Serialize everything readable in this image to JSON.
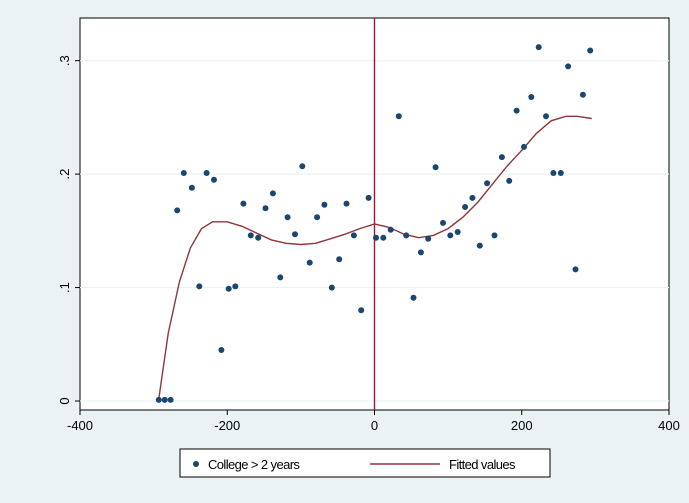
{
  "chart_data": {
    "type": "scatter",
    "title": "",
    "xlabel": "",
    "ylabel": "",
    "xlim": [
      -400,
      400
    ],
    "ylim": [
      0,
      0.32
    ],
    "x_ticks": [
      {
        "value": -400,
        "label": "-400"
      },
      {
        "value": -200,
        "label": "-200"
      },
      {
        "value": 0,
        "label": "0"
      },
      {
        "value": 200,
        "label": "200"
      },
      {
        "value": 400,
        "label": "400"
      }
    ],
    "y_ticks": [
      {
        "value": 0,
        "label": "0"
      },
      {
        "value": 0.1,
        "label": ".1"
      },
      {
        "value": 0.2,
        "label": ".2"
      },
      {
        "value": 0.3,
        "label": ".3"
      }
    ],
    "grid": "horizontal",
    "cutoff_line_x": 0,
    "legend_position": "bottom",
    "series": [
      {
        "name": "College > 2 years",
        "kind": "scatter",
        "color": "#1a476f",
        "points": [
          [
            -293,
            0.001
          ],
          [
            -285,
            0.001
          ],
          [
            -277,
            0.001
          ],
          [
            -268,
            0.168
          ],
          [
            -259,
            0.201
          ],
          [
            -248,
            0.188
          ],
          [
            -238,
            0.101
          ],
          [
            -228,
            0.201
          ],
          [
            -218,
            0.195
          ],
          [
            -208,
            0.045
          ],
          [
            -198,
            0.099
          ],
          [
            -189,
            0.101
          ],
          [
            -178,
            0.174
          ],
          [
            -168,
            0.146
          ],
          [
            -158,
            0.144
          ],
          [
            -148,
            0.17
          ],
          [
            -138,
            0.183
          ],
          [
            -128,
            0.109
          ],
          [
            -118,
            0.162
          ],
          [
            -108,
            0.147
          ],
          [
            -98,
            0.207
          ],
          [
            -88,
            0.122
          ],
          [
            -78,
            0.162
          ],
          [
            -68,
            0.173
          ],
          [
            -58,
            0.1
          ],
          [
            -48,
            0.125
          ],
          [
            -38,
            0.174
          ],
          [
            -28,
            0.146
          ],
          [
            -18,
            0.08
          ],
          [
            -8,
            0.179
          ],
          [
            2,
            0.144
          ],
          [
            12,
            0.144
          ],
          [
            22,
            0.151
          ],
          [
            33,
            0.251
          ],
          [
            43,
            0.146
          ],
          [
            53,
            0.091
          ],
          [
            63,
            0.131
          ],
          [
            73,
            0.143
          ],
          [
            83,
            0.206
          ],
          [
            93,
            0.157
          ],
          [
            103,
            0.146
          ],
          [
            113,
            0.149
          ],
          [
            123,
            0.171
          ],
          [
            133,
            0.179
          ],
          [
            143,
            0.137
          ],
          [
            153,
            0.192
          ],
          [
            163,
            0.146
          ],
          [
            173,
            0.215
          ],
          [
            183,
            0.194
          ],
          [
            193,
            0.256
          ],
          [
            203,
            0.224
          ],
          [
            213,
            0.268
          ],
          [
            223,
            0.312
          ],
          [
            233,
            0.251
          ],
          [
            243,
            0.201
          ],
          [
            253,
            0.201
          ],
          [
            263,
            0.295
          ],
          [
            273,
            0.116
          ],
          [
            283,
            0.27
          ],
          [
            293,
            0.309
          ]
        ]
      },
      {
        "name": "Fitted values",
        "kind": "line",
        "color": "#90353b",
        "points": [
          [
            -293,
            0.002
          ],
          [
            -280,
            0.06
          ],
          [
            -265,
            0.105
          ],
          [
            -250,
            0.135
          ],
          [
            -235,
            0.152
          ],
          [
            -220,
            0.158
          ],
          [
            -200,
            0.158
          ],
          [
            -180,
            0.154
          ],
          [
            -160,
            0.148
          ],
          [
            -140,
            0.142
          ],
          [
            -120,
            0.139
          ],
          [
            -100,
            0.138
          ],
          [
            -80,
            0.139
          ],
          [
            -60,
            0.143
          ],
          [
            -40,
            0.147
          ],
          [
            -20,
            0.152
          ],
          [
            0,
            0.156
          ],
          [
            20,
            0.153
          ],
          [
            40,
            0.147
          ],
          [
            60,
            0.144
          ],
          [
            80,
            0.146
          ],
          [
            100,
            0.152
          ],
          [
            120,
            0.162
          ],
          [
            140,
            0.175
          ],
          [
            160,
            0.191
          ],
          [
            180,
            0.207
          ],
          [
            200,
            0.221
          ],
          [
            220,
            0.236
          ],
          [
            240,
            0.247
          ],
          [
            260,
            0.251
          ],
          [
            275,
            0.251
          ],
          [
            295,
            0.249
          ]
        ]
      }
    ]
  }
}
